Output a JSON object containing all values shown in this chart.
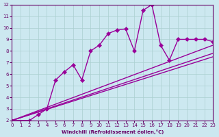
{
  "xlabel": "Windchill (Refroidissement éolien,°C)",
  "bg_color": "#cce8f0",
  "line_color": "#990099",
  "grid_color": "#aacfcf",
  "axis_color": "#660066",
  "xmin": 0,
  "xmax": 23,
  "ymin": 2,
  "ymax": 12,
  "xticks": [
    0,
    1,
    2,
    3,
    4,
    5,
    6,
    7,
    8,
    9,
    10,
    11,
    12,
    13,
    14,
    15,
    16,
    17,
    18,
    19,
    20,
    21,
    22,
    23
  ],
  "yticks": [
    2,
    3,
    4,
    5,
    6,
    7,
    8,
    9,
    10,
    11,
    12
  ],
  "series1_x": [
    0,
    2,
    3,
    4,
    5,
    6,
    7,
    8,
    9,
    10,
    11,
    12,
    13,
    14,
    15,
    16,
    17,
    18,
    19,
    20,
    21,
    22,
    23
  ],
  "series1_y": [
    2,
    2,
    2.5,
    3.0,
    5.5,
    6.2,
    6.8,
    5.5,
    8.0,
    8.5,
    9.5,
    9.8,
    9.9,
    8.0,
    11.5,
    12.0,
    8.5,
    7.2,
    9.0,
    9.0,
    9.0,
    9.0,
    8.8
  ],
  "series2_x": [
    0,
    23
  ],
  "series2_y": [
    2.0,
    8.5
  ],
  "series3_x": [
    0,
    23
  ],
  "series3_y": [
    2.0,
    7.5
  ],
  "series4_x": [
    0,
    23
  ],
  "series4_y": [
    2.0,
    7.8
  ],
  "markersize": 3,
  "linewidth": 1.0
}
